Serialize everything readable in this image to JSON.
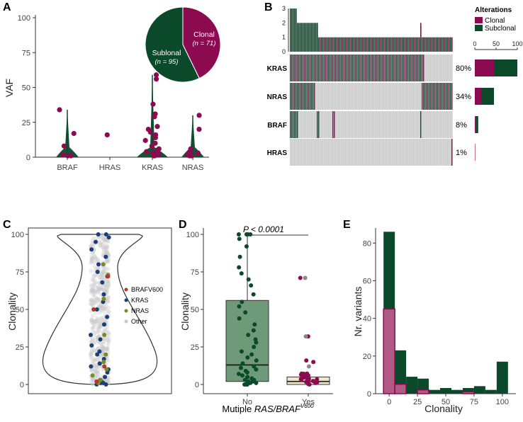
{
  "colors": {
    "clonal": "#8b0a50",
    "subclonal": "#0a4a2a",
    "grey": "#c8c8c8",
    "gene_braf": "#b5392a",
    "gene_kras": "#1a3f7a",
    "gene_nras": "#7a8a2a",
    "gene_other": "#c8c8c8",
    "box_no": "#6e9a7a",
    "box_yes": "#efe9c9",
    "hist_clonal": "#b05a85"
  },
  "chart_data": [
    {
      "panel": "A",
      "type": "violin",
      "ylabel": "VAF",
      "ylim": [
        0,
        100
      ],
      "yticks": [
        0,
        25,
        50,
        75,
        100
      ],
      "categories": [
        "BRAF",
        "HRAS",
        "KRAS",
        "NRAS"
      ],
      "points": {
        "BRAF": [
          34,
          17,
          8,
          2,
          1,
          1
        ],
        "HRAS": [
          16
        ],
        "KRAS": [
          59,
          56,
          38,
          31,
          29,
          22,
          20,
          18,
          16,
          14,
          12,
          10,
          8,
          6,
          5,
          4,
          3,
          2,
          2,
          1,
          1
        ],
        "NRAS": [
          30,
          20,
          6,
          4,
          3,
          2,
          2,
          1,
          1
        ]
      },
      "violin_max": {
        "BRAF": 34,
        "HRAS": 16,
        "KRAS": 59,
        "NRAS": 30
      },
      "pie": {
        "slices": [
          {
            "label": "Clonal",
            "n_text": "(n = 71)",
            "value": 71
          },
          {
            "label": "Sublonal",
            "n_text": "(n = 95)",
            "value": 95
          }
        ]
      }
    },
    {
      "panel": "B",
      "type": "oncoprint",
      "legend_title": "Alterations",
      "legend": [
        "Clonal",
        "Subclonal"
      ],
      "top_yticks": [
        "0",
        "1",
        "2",
        "3"
      ],
      "genes": [
        {
          "name": "KRAS",
          "pct": "80%",
          "clonal_frac": 45,
          "subclonal_frac": 55
        },
        {
          "name": "NRAS",
          "pct": "34%",
          "clonal_frac": 15,
          "subclonal_frac": 30
        },
        {
          "name": "BRAF",
          "pct": "8%",
          "clonal_frac": 2,
          "subclonal_frac": 6
        },
        {
          "name": "HRAS",
          "pct": "1%",
          "clonal_frac": 1,
          "subclonal_frac": 0
        }
      ],
      "bar_axis_ticks": [
        "0",
        "50",
        "100"
      ]
    },
    {
      "panel": "C",
      "type": "violin_scatter",
      "ylabel": "Clonality",
      "ylim": [
        0,
        100
      ],
      "yticks": [
        0,
        25,
        50,
        75,
        100
      ],
      "legend": [
        "BRAFV600",
        "KRAS",
        "NRAS",
        "Other"
      ]
    },
    {
      "panel": "D",
      "type": "boxplot",
      "ylabel": "Clonality",
      "ylim": [
        0,
        100
      ],
      "yticks": [
        0,
        25,
        50,
        75,
        100
      ],
      "xlabel_prefix": "Mutiple ",
      "xlabel_italic": "RAS/BRAF",
      "xlabel_sup": "V600",
      "categories": [
        "No",
        "Yes"
      ],
      "pvalue": "P < 0.0001",
      "boxes": [
        {
          "name": "No",
          "min": 0,
          "q1": 2,
          "median": 13,
          "q3": 56,
          "max": 100
        },
        {
          "name": "Yes",
          "min": 0,
          "q1": 0,
          "median": 2,
          "q3": 5,
          "max": 8
        }
      ],
      "outliers_yes": [
        71,
        71,
        32,
        32,
        16,
        15,
        12
      ]
    },
    {
      "panel": "E",
      "type": "histogram",
      "ylabel": "Nr. variants",
      "xlabel": "Clonality",
      "xlim": [
        -12,
        112
      ],
      "ylim": [
        0,
        88
      ],
      "xticks": [
        0,
        25,
        50,
        75,
        100
      ],
      "yticks": [
        0,
        20,
        40,
        60,
        80
      ],
      "bins": [
        -5,
        5,
        15,
        25,
        35,
        45,
        55,
        65,
        75,
        85,
        95,
        105
      ],
      "total": [
        86,
        23,
        9,
        8,
        2,
        3,
        2,
        3,
        4,
        2,
        17
      ],
      "clonal": [
        45,
        5,
        0,
        2,
        0,
        0,
        0,
        1,
        0,
        0,
        0
      ]
    }
  ],
  "labels": {
    "A": "A",
    "B": "B",
    "C": "C",
    "D": "D",
    "E": "E"
  }
}
